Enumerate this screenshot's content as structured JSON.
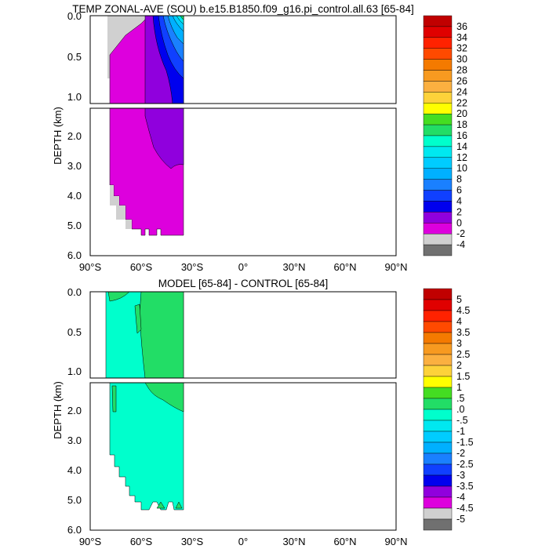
{
  "chart_data": [
    {
      "type": "contour",
      "title": "TEMP ZONAL-AVE (SOU) b.e15.B1850.f09_g16.pi_control.all.63 [65-84]",
      "ylabel": "DEPTH (km)",
      "x_ticks": [
        "90°S",
        "60°S",
        "30°S",
        "0°",
        "30°N",
        "60°N",
        "90°N"
      ],
      "upper_y_ticks": [
        "0.0",
        "0.5",
        "1.0"
      ],
      "lower_y_ticks": [
        "2.0",
        "3.0",
        "4.0",
        "5.0",
        "6.0"
      ],
      "colorbar": {
        "labels": [
          "36",
          "34",
          "32",
          "30",
          "28",
          "26",
          "24",
          "22",
          "20",
          "18",
          "16",
          "14",
          "12",
          "10",
          "8",
          "6",
          "4",
          "2",
          "0",
          "-2",
          "-4"
        ],
        "colors": [
          "#c00000",
          "#e00000",
          "#ff2200",
          "#ff4a00",
          "#f47a00",
          "#f79a20",
          "#fbb040",
          "#fdd23a",
          "#ffff00",
          "#44dd22",
          "#22dd66",
          "#00ffcc",
          "#00e8f0",
          "#00ccff",
          "#00b0ff",
          "#1a80ff",
          "#1040ff",
          "#0000ee",
          "#9000dd",
          "#dd00dd",
          "#d0d0d0",
          "#707070"
        ]
      },
      "panel_colors": {
        "land": "#d0d0d0",
        "t0_2": "#dd00dd",
        "t2_4": "#9000dd",
        "t4_6": "#0000ee",
        "t6_8": "#1040ff",
        "t8_10": "#1a80ff",
        "t10_12": "#00b0ff",
        "t12_14": "#00ccff",
        "t14_16": "#00e8f0",
        "t16_18": "#22dd66"
      }
    },
    {
      "type": "contour",
      "title": "MODEL [65-84] - CONTROL [65-84]",
      "ylabel": "DEPTH (km)",
      "x_ticks": [
        "90°S",
        "60°S",
        "30°S",
        "0°",
        "30°N",
        "60°N",
        "90°N"
      ],
      "upper_y_ticks": [
        "0.0",
        "0.5",
        "1.0"
      ],
      "lower_y_ticks": [
        "2.0",
        "3.0",
        "4.0",
        "5.0",
        "6.0"
      ],
      "colorbar": {
        "labels": [
          "5",
          "4.5",
          "4",
          "3.5",
          "3",
          "2.5",
          "2",
          "1.5",
          "1",
          ".5",
          ".0",
          "-.5",
          "-1",
          "-1.5",
          "-2",
          "-2.5",
          "-3",
          "-3.5",
          "-4",
          "-4.5",
          "-5"
        ],
        "colors": [
          "#c00000",
          "#e00000",
          "#ff2200",
          "#ff4a00",
          "#f47a00",
          "#f79a20",
          "#fbb040",
          "#fdd23a",
          "#ffff00",
          "#44dd22",
          "#22dd66",
          "#00ffcc",
          "#00e8f0",
          "#00ccff",
          "#00b0ff",
          "#1a80ff",
          "#1040ff",
          "#0000ee",
          "#9000dd",
          "#dd00dd",
          "#d0d0d0",
          "#707070"
        ]
      },
      "panel_colors": {
        "pos": "#22dd66",
        "neg": "#00ffcc",
        "land": "#d0d0d0"
      }
    }
  ]
}
